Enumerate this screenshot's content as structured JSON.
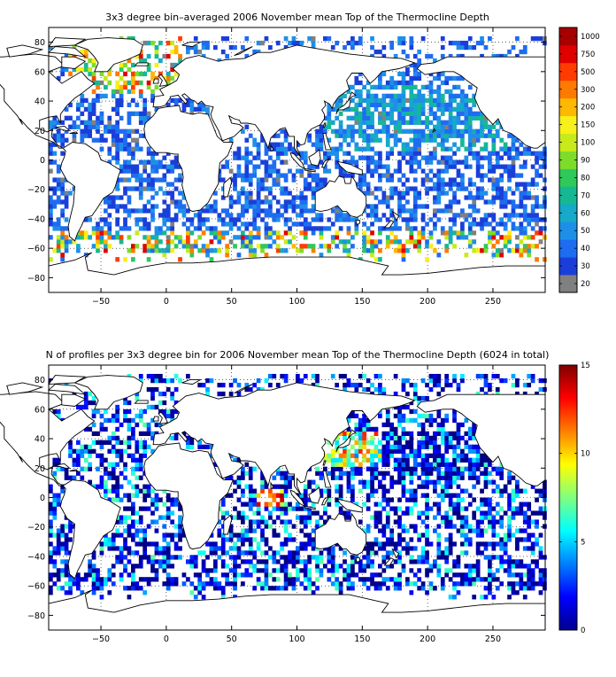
{
  "chart_data": [
    {
      "type": "heatmap",
      "title": "3x3 degree bin–averaged 2006 November mean Top of the Thermocline Depth",
      "xlim": [
        -90,
        290
      ],
      "ylim": [
        -90,
        90
      ],
      "x_ticks": [
        -50,
        0,
        50,
        100,
        150,
        200,
        250
      ],
      "y_ticks": [
        80,
        60,
        40,
        20,
        0,
        -20,
        -40,
        -60,
        -80
      ],
      "x_tick_labels": [
        "−50",
        "0",
        "50",
        "100",
        "150",
        "200",
        "250"
      ],
      "y_tick_labels": [
        "80",
        "60",
        "40",
        "20",
        "0",
        "−20",
        "−40",
        "−60",
        "−80"
      ],
      "grid": true,
      "colorbar": {
        "type": "discrete",
        "levels": [
          "20",
          "30",
          "40",
          "50",
          "60",
          "70",
          "80",
          "90",
          "100",
          "150",
          "200",
          "300",
          "500",
          "750",
          "1000"
        ],
        "colors": [
          "#808080",
          "#1a3fd9",
          "#1e6cf0",
          "#1e8fe8",
          "#16a9c9",
          "#16b894",
          "#2ec95a",
          "#7ddc2a",
          "#c8ea1a",
          "#f7f01a",
          "#ffb800",
          "#ff7a00",
          "#ff3c00",
          "#e10000",
          "#a80000"
        ]
      }
    },
    {
      "type": "heatmap",
      "title": "N of profiles per 3x3 degree bin for 2006 November mean Top of the Thermocline Depth  (6024 in total)",
      "xlim": [
        -90,
        290
      ],
      "ylim": [
        -90,
        90
      ],
      "x_ticks": [
        -50,
        0,
        50,
        100,
        150,
        200,
        250
      ],
      "y_ticks": [
        80,
        60,
        40,
        20,
        0,
        -20,
        -40,
        -60,
        -80
      ],
      "x_tick_labels": [
        "−50",
        "0",
        "50",
        "100",
        "150",
        "200",
        "250"
      ],
      "y_tick_labels": [
        "80",
        "60",
        "40",
        "20",
        "0",
        "−20",
        "−40",
        "−60",
        "−80"
      ],
      "grid": true,
      "total_profiles": 6024,
      "colorbar": {
        "type": "continuous",
        "range": [
          0,
          15
        ],
        "ticks": [
          0,
          5,
          10,
          15
        ],
        "tick_labels": [
          "0",
          "5",
          "10",
          "15"
        ],
        "colormap": "jet"
      }
    }
  ]
}
